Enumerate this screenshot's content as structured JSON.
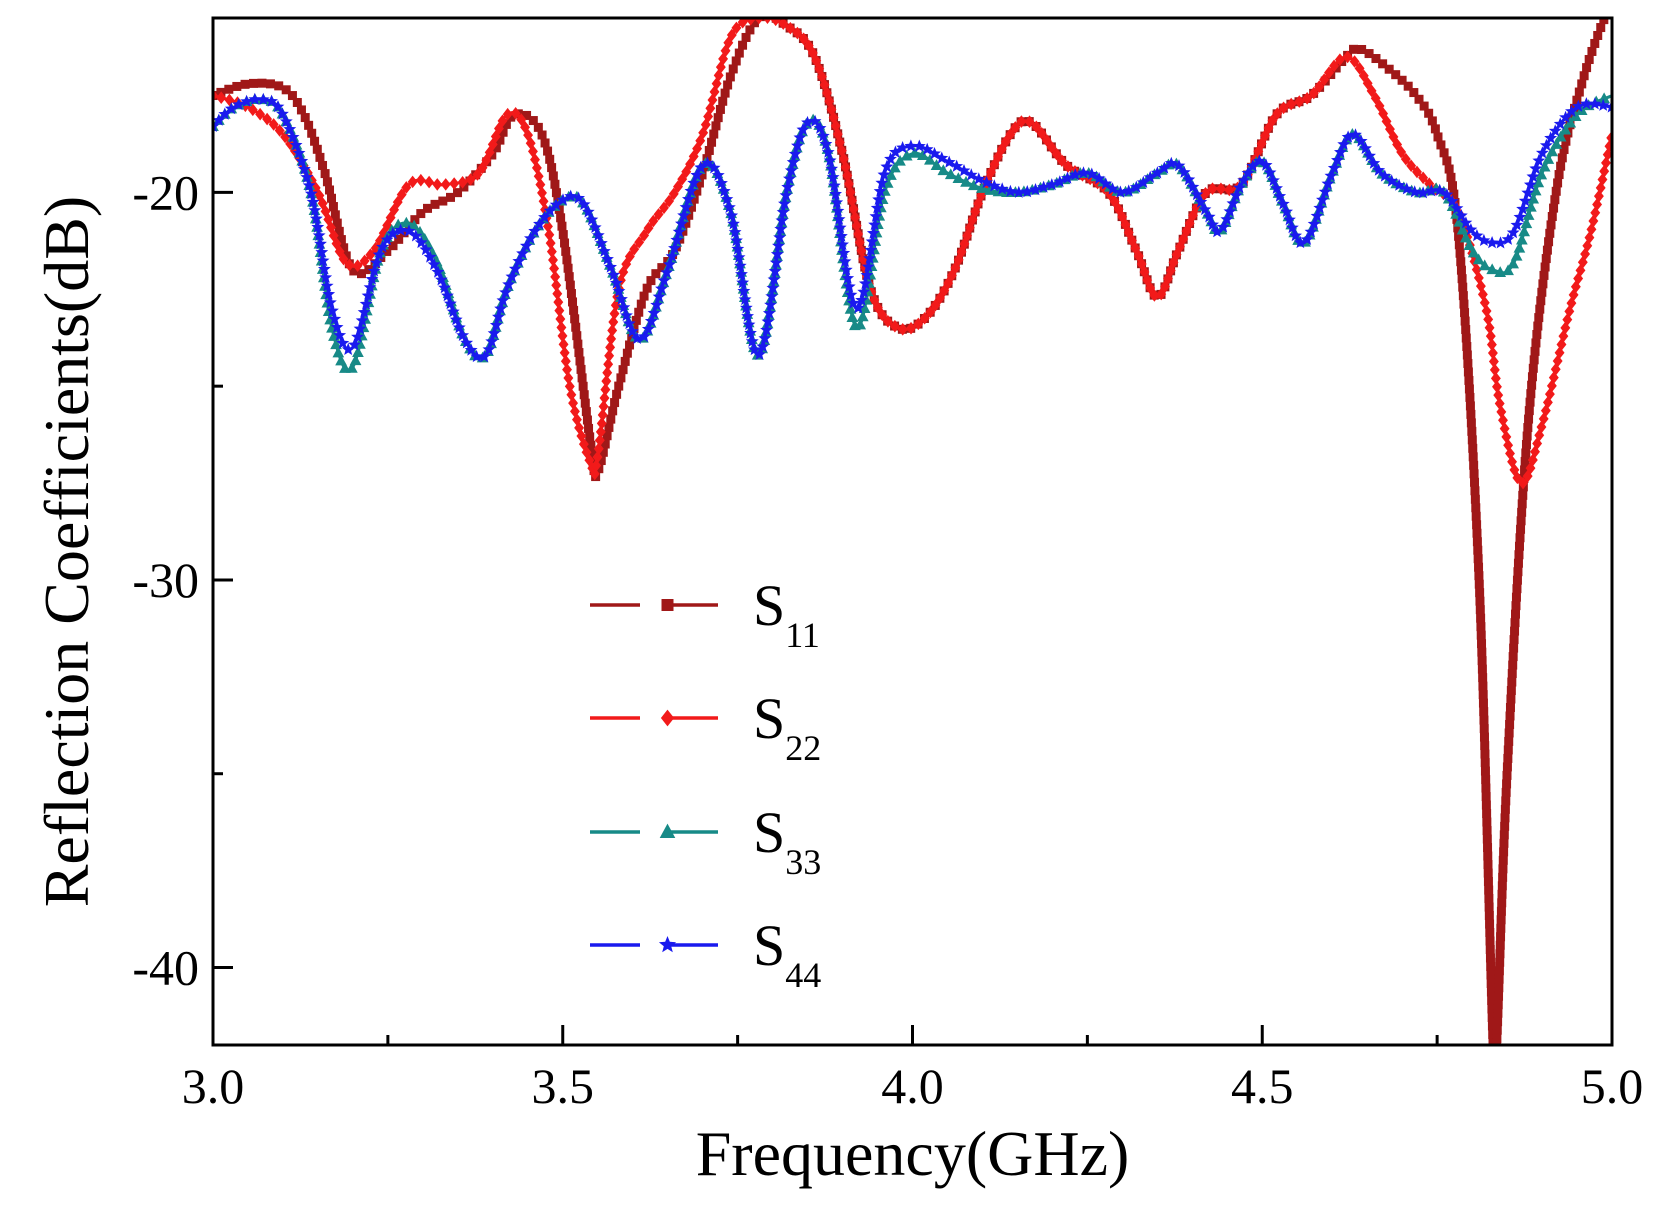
{
  "chart_data": {
    "type": "line",
    "title": "",
    "xlabel": "Frequency(GHz)",
    "ylabel": "Reflection Coefficients(dB)",
    "xlim": [
      3.0,
      5.0
    ],
    "ylim": [
      -42,
      -15.5
    ],
    "xticks": [
      3.0,
      3.5,
      4.0,
      4.5,
      5.0
    ],
    "xtick_labels": [
      "3.0",
      "3.5",
      "4.0",
      "4.5",
      "5.0"
    ],
    "yticks": [
      -40,
      -30,
      -20
    ],
    "ytick_labels": [
      "-40",
      "-30",
      "-20"
    ],
    "grid": false,
    "legend_position": "center-left",
    "series": [
      {
        "name": "S11",
        "base": "S",
        "sub": "11",
        "color": "#a01818",
        "marker": "square",
        "x": [
          3.0,
          3.05,
          3.1,
          3.13,
          3.16,
          3.2,
          3.25,
          3.3,
          3.35,
          3.4,
          3.43,
          3.47,
          3.5,
          3.54,
          3.55,
          3.58,
          3.62,
          3.66,
          3.7,
          3.74,
          3.78,
          3.82,
          3.86,
          3.9,
          3.94,
          3.98,
          4.02,
          4.06,
          4.1,
          4.14,
          4.17,
          4.22,
          4.28,
          4.32,
          4.35,
          4.38,
          4.42,
          4.47,
          4.52,
          4.57,
          4.62,
          4.64,
          4.68,
          4.72,
          4.75,
          4.78,
          4.81,
          4.83,
          4.835,
          4.85,
          4.88,
          4.92,
          4.96,
          5.0
        ],
        "y": [
          -17.5,
          -17.2,
          -17.3,
          -18.0,
          -19.5,
          -22.0,
          -21.5,
          -20.5,
          -20.0,
          -19.0,
          -18.0,
          -18.5,
          -21.0,
          -26.5,
          -27.2,
          -25.0,
          -22.5,
          -21.5,
          -19.5,
          -17.0,
          -15.5,
          -15.7,
          -16.5,
          -19.0,
          -22.5,
          -23.5,
          -23.2,
          -22.0,
          -20.0,
          -18.5,
          -18.2,
          -19.3,
          -20.0,
          -21.5,
          -22.7,
          -21.5,
          -20.0,
          -19.8,
          -18.0,
          -17.5,
          -16.5,
          -16.3,
          -16.8,
          -17.5,
          -18.5,
          -21.0,
          -30.0,
          -42.0,
          -42.0,
          -35.0,
          -26.0,
          -20.0,
          -17.0,
          -15.0
        ]
      },
      {
        "name": "S22",
        "base": "S",
        "sub": "22",
        "color": "#f21a1a",
        "marker": "diamond",
        "x": [
          3.0,
          3.05,
          3.1,
          3.15,
          3.19,
          3.23,
          3.28,
          3.33,
          3.38,
          3.42,
          3.45,
          3.48,
          3.51,
          3.54,
          3.55,
          3.58,
          3.62,
          3.66,
          3.7,
          3.74,
          3.78,
          3.82,
          3.86,
          3.9,
          3.94,
          3.98,
          4.02,
          4.06,
          4.1,
          4.14,
          4.17,
          4.22,
          4.28,
          4.32,
          4.35,
          4.38,
          4.42,
          4.47,
          4.52,
          4.57,
          4.62,
          4.66,
          4.7,
          4.74,
          4.78,
          4.82,
          4.84,
          4.87,
          4.9,
          4.94,
          4.97,
          5.0
        ],
        "y": [
          -17.5,
          -17.8,
          -18.5,
          -20.0,
          -21.8,
          -21.5,
          -19.8,
          -19.8,
          -19.5,
          -18.0,
          -18.5,
          -21.0,
          -25.0,
          -27.0,
          -26.8,
          -22.5,
          -21.0,
          -20.0,
          -18.5,
          -16.0,
          -15.5,
          -15.7,
          -16.5,
          -19.0,
          -22.5,
          -23.5,
          -23.2,
          -22.0,
          -20.0,
          -18.5,
          -18.2,
          -19.3,
          -20.0,
          -21.5,
          -22.7,
          -21.5,
          -20.0,
          -19.8,
          -18.0,
          -17.5,
          -16.5,
          -17.5,
          -19.0,
          -19.8,
          -20.5,
          -23.0,
          -25.5,
          -27.5,
          -26.0,
          -23.0,
          -21.0,
          -18.5
        ]
      },
      {
        "name": "S33",
        "base": "S",
        "sub": "33",
        "color": "#178a87",
        "marker": "triangle",
        "x": [
          3.0,
          3.03,
          3.07,
          3.1,
          3.14,
          3.17,
          3.2,
          3.24,
          3.28,
          3.32,
          3.36,
          3.39,
          3.42,
          3.46,
          3.5,
          3.53,
          3.57,
          3.61,
          3.65,
          3.7,
          3.74,
          3.78,
          3.82,
          3.85,
          3.88,
          3.92,
          3.96,
          4.0,
          4.05,
          4.1,
          4.15,
          4.2,
          4.25,
          4.3,
          4.35,
          4.38,
          4.42,
          4.44,
          4.47,
          4.5,
          4.53,
          4.56,
          4.6,
          4.63,
          4.67,
          4.72,
          4.76,
          4.8,
          4.83,
          4.86,
          4.9,
          4.95,
          5.0
        ],
        "y": [
          -18.3,
          -17.8,
          -17.6,
          -18.0,
          -20.0,
          -23.5,
          -24.5,
          -21.5,
          -20.8,
          -21.8,
          -23.8,
          -24.2,
          -22.5,
          -21.0,
          -20.2,
          -20.3,
          -22.0,
          -23.8,
          -22.0,
          -19.3,
          -20.5,
          -24.2,
          -20.0,
          -18.2,
          -19.0,
          -23.5,
          -20.0,
          -19.0,
          -19.5,
          -19.9,
          -20.0,
          -19.8,
          -19.5,
          -20.0,
          -19.5,
          -19.3,
          -20.5,
          -21.0,
          -19.8,
          -19.2,
          -20.3,
          -21.3,
          -19.5,
          -18.5,
          -19.5,
          -20.0,
          -20.0,
          -21.5,
          -22.0,
          -21.8,
          -19.5,
          -18.0,
          -17.5
        ]
      },
      {
        "name": "S44",
        "base": "S",
        "sub": "44",
        "color": "#1a1aee",
        "marker": "star",
        "x": [
          3.0,
          3.03,
          3.07,
          3.1,
          3.14,
          3.17,
          3.2,
          3.24,
          3.28,
          3.32,
          3.36,
          3.39,
          3.42,
          3.46,
          3.5,
          3.53,
          3.57,
          3.61,
          3.65,
          3.7,
          3.74,
          3.78,
          3.82,
          3.85,
          3.88,
          3.92,
          3.96,
          4.0,
          4.05,
          4.1,
          4.15,
          4.2,
          4.25,
          4.3,
          4.35,
          4.38,
          4.42,
          4.44,
          4.47,
          4.5,
          4.53,
          4.56,
          4.6,
          4.63,
          4.67,
          4.72,
          4.76,
          4.8,
          4.83,
          4.86,
          4.9,
          4.95,
          5.0
        ],
        "y": [
          -18.3,
          -17.8,
          -17.6,
          -18.0,
          -20.0,
          -23.0,
          -24.0,
          -21.5,
          -21.0,
          -22.0,
          -23.8,
          -24.2,
          -22.5,
          -21.0,
          -20.2,
          -20.3,
          -22.0,
          -23.8,
          -22.0,
          -19.3,
          -20.5,
          -24.2,
          -20.0,
          -18.2,
          -19.0,
          -23.0,
          -19.5,
          -18.8,
          -19.2,
          -19.7,
          -20.0,
          -19.8,
          -19.5,
          -20.0,
          -19.5,
          -19.3,
          -20.5,
          -21.0,
          -19.8,
          -19.2,
          -20.3,
          -21.3,
          -19.5,
          -18.5,
          -19.5,
          -20.0,
          -20.0,
          -21.0,
          -21.3,
          -21.0,
          -19.0,
          -17.8,
          -17.8
        ]
      }
    ]
  }
}
